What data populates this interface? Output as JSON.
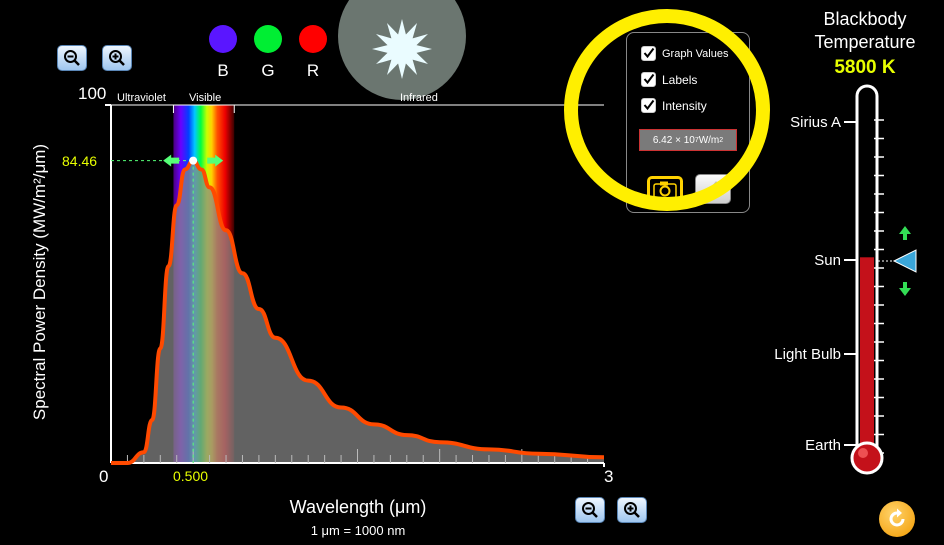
{
  "filters": [
    {
      "label": "B",
      "color": "#5a16ff"
    },
    {
      "label": "G",
      "color": "#00ee33"
    },
    {
      "label": "R",
      "color": "#ff0000"
    }
  ],
  "graph": {
    "y_axis_title": "Spectral Power Density (MW/m²/μm)",
    "y_max_label": "100",
    "x_axis_title": "Wavelength (μm)",
    "x_unit_note": "1 μm  =  1000 nm",
    "x_min_label": "0",
    "x_max_label": "3",
    "peak_value_label": "84.46",
    "peak_wavelength_label": "0.500",
    "band_labels": {
      "ultraviolet": "Ultraviolet",
      "visible": "Visible",
      "infrared": "Infrared"
    }
  },
  "options_panel": {
    "graph_values_label": "Graph Values",
    "graph_values_checked": true,
    "labels_label": "Labels",
    "labels_checked": true,
    "intensity_label": "Intensity",
    "intensity_checked": true,
    "intensity_value_prefix": "6.42 × 10",
    "intensity_value_exp": "7",
    "intensity_value_unit": " W/m",
    "intensity_value_unit_exp": "2"
  },
  "thermometer": {
    "title_line1": "Blackbody",
    "title_line2": "Temperature",
    "temperature": "5800 K",
    "markers": [
      "Sirius A",
      "Sun",
      "Light Bulb",
      "Earth"
    ],
    "fill_fraction": 0.55
  },
  "colors": {
    "curve": "#ff4a00",
    "accent_yellow": "#e8ff00",
    "temperature_text": "#e8ff00",
    "peak_marker": "#55ff77"
  },
  "chart_data": {
    "type": "area",
    "x": [
      0.0,
      0.1,
      0.2,
      0.25,
      0.3,
      0.35,
      0.4,
      0.45,
      0.5,
      0.55,
      0.6,
      0.7,
      0.8,
      0.9,
      1.0,
      1.2,
      1.4,
      1.6,
      1.8,
      2.0,
      2.3,
      2.6,
      3.0
    ],
    "y": [
      0,
      0,
      3,
      12,
      32,
      55,
      72,
      82,
      84.46,
      82,
      77,
      65,
      53,
      43,
      35,
      23,
      15.5,
      10.8,
      7.8,
      5.8,
      3.8,
      2.6,
      1.6
    ],
    "xlabel": "Wavelength (μm)",
    "ylabel": "Spectral Power Density (MW/m²/μm)",
    "xlim": [
      0,
      3
    ],
    "ylim": [
      0,
      100
    ],
    "grid": false
  }
}
